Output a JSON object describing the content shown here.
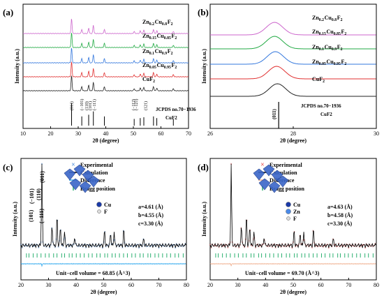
{
  "chart_data": [
    {
      "panel": "(a)",
      "type": "line",
      "xlabel": "2θ (degree)",
      "ylabel": "Intensity (a.u.)",
      "xlim": [
        10,
        70
      ],
      "xticks": [
        "10",
        "20",
        "30",
        "40",
        "50",
        "60",
        "70"
      ],
      "peaks": [
        27.6,
        31.3,
        33.8,
        35.5,
        39.5,
        50.3,
        52.5,
        53.8,
        57.3,
        58.5,
        64.5
      ],
      "series": [
        {
          "name": "Zn0.2Cu0.8F2",
          "color": "#cc66cc"
        },
        {
          "name": "Zn0.15Cu0.85F2",
          "color": "#22aa44"
        },
        {
          "name": "Zn0.1Cu0.9F2",
          "color": "#3377dd"
        },
        {
          "name": "Zn0.05Cu0.95F2",
          "color": "#e03030"
        },
        {
          "name": "CuF2",
          "color": "#222222"
        }
      ],
      "labels": [
        {
          "base": "Zn",
          "s1": "0.2",
          "mid": "Cu",
          "s2": "0.8",
          "tail": "F",
          "s3": "2"
        },
        {
          "base": "Zn",
          "s1": "0.15",
          "mid": "Cu",
          "s2": "0.85",
          "tail": "F",
          "s3": "2"
        },
        {
          "base": "Zn",
          "s1": "0.1",
          "mid": "Cu",
          "s2": "0.9",
          "tail": "F",
          "s3": "2"
        },
        {
          "base": "Zn",
          "s1": "0.05",
          "mid": "Cu",
          "s2": "0.95",
          "tail": "F",
          "s3": "2"
        },
        {
          "base": "CuF",
          "s1": "",
          "mid": "",
          "s2": "",
          "tail": "",
          "s3": "2"
        }
      ],
      "reference": {
        "line1": "JCPDS no.70−1936",
        "line2": "CuF2"
      },
      "reference_peaks": [
        27.6,
        31.3,
        33.8,
        35.5,
        39.5,
        50.3,
        52.5,
        53.8,
        57.3,
        58.5,
        64.5
      ],
      "hkl": [
        {
          "x": 27.6,
          "label": "(011)"
        },
        {
          "x": 31.3,
          "label": "(−101)"
        },
        {
          "x": 33.1,
          "label": "(110)"
        },
        {
          "x": 34.3,
          "label": "(101)"
        },
        {
          "x": 35.8,
          "label": "(−111)"
        },
        {
          "x": 50.0,
          "label": "(−112)"
        },
        {
          "x": 51.0,
          "label": "(−121)"
        },
        {
          "x": 54.4,
          "label": "(121)"
        }
      ]
    },
    {
      "panel": "(b)",
      "type": "line",
      "xlabel": "2θ (degree)",
      "ylabel": "Intensity (a.u.)",
      "xlim": [
        26,
        30
      ],
      "xticks": [
        "26",
        "28",
        "30"
      ],
      "peak_positions": [
        27.55,
        27.55,
        27.57,
        27.6,
        27.62
      ],
      "series": [
        {
          "name": "Zn0.2Cu0.8F2",
          "color": "#cc66cc"
        },
        {
          "name": "Zn0.15Cu0.85F2",
          "color": "#22aa44"
        },
        {
          "name": "Zn0.1Cu0.9F2",
          "color": "#3377dd"
        },
        {
          "name": "Zn0.05Cu0.95F2",
          "color": "#e03030"
        },
        {
          "name": "CuF2",
          "color": "#222222"
        }
      ],
      "reference": {
        "line1": "JCPDS no.70−1936",
        "line2": "CuF2",
        "hkl": "(011)",
        "x": 27.65
      }
    },
    {
      "panel": "(c)",
      "type": "line",
      "xlabel": "2θ (degree)",
      "ylabel": "Intensity (a.u.)",
      "xlim": [
        20,
        80
      ],
      "xticks": [
        "20",
        "30",
        "40",
        "50",
        "60",
        "70",
        "80"
      ],
      "legend": [
        "Experimental",
        "Calculation",
        "Difference",
        "Bragg position"
      ],
      "colors": {
        "experimental": "#1f6fd0",
        "calculation": "#000000",
        "difference": "#33aaee",
        "bragg": "#2bb070"
      },
      "peaks": [
        27.6,
        31.3,
        33.1,
        34.3,
        35.8,
        39.5,
        50.3,
        52.5,
        53.8,
        57.3,
        64.5
      ],
      "peak_labels": [
        "(011)",
        "(−101)",
        "(110)",
        "(101)",
        "(−111)"
      ],
      "atoms": [
        "Cu",
        "F"
      ],
      "cell": [
        "a=4.61 (Å)",
        "b=4.55 (Å)",
        "c=3.30 (Å)"
      ],
      "volume": "Unit−cell volume = 68.85 (Å^3)"
    },
    {
      "panel": "(d)",
      "type": "line",
      "xlabel": "2θ (degree)",
      "ylabel": "Intensity (a.u.)",
      "xlim": [
        20,
        80
      ],
      "xticks": [
        "20",
        "30",
        "40",
        "50",
        "60",
        "70",
        "80"
      ],
      "legend": [
        "Experimental",
        "Calculation",
        "Difference",
        "Bragg position"
      ],
      "colors": {
        "experimental": "#e02020",
        "calculation": "#000000",
        "difference": "#f0b090",
        "bragg": "#2bb070"
      },
      "peaks": [
        27.6,
        31.3,
        33.1,
        34.3,
        35.8,
        39.5,
        50.3,
        52.5,
        53.8,
        57.3,
        64.5
      ],
      "atoms": [
        "Cu",
        "Zn",
        "F"
      ],
      "cell": [
        "a=4.63 (Å)",
        "b=4.58 (Å)",
        "c=3.30 (Å)"
      ],
      "volume": "Unit−cell volume = 69.70 (Å^3)"
    }
  ]
}
